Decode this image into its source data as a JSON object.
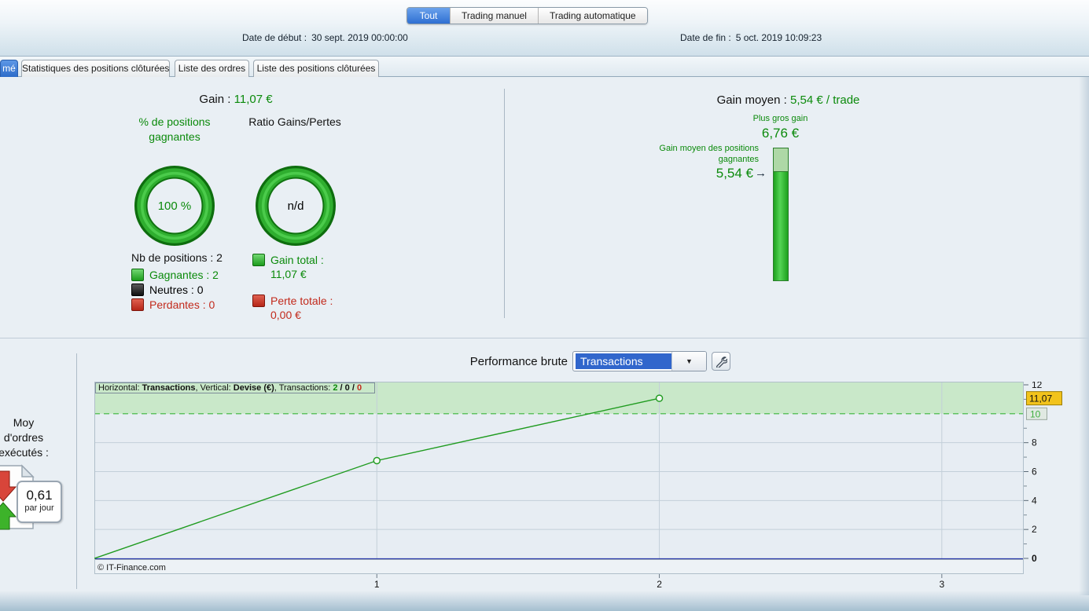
{
  "top": {
    "view_tabs": [
      {
        "label": "Tout",
        "selected": true
      },
      {
        "label": "Trading manuel",
        "selected": false
      },
      {
        "label": "Trading automatique",
        "selected": false
      }
    ],
    "date_start_label": "Date de début :",
    "date_start_value": "30 sept. 2019 00:00:00",
    "date_end_label": "Date de fin :",
    "date_end_value": "5 oct. 2019 10:09:23"
  },
  "tabs": [
    {
      "label": "mé",
      "selected": true
    },
    {
      "label": "Statistiques des positions clôturées",
      "selected": false
    },
    {
      "label": "Liste des ordres",
      "selected": false
    },
    {
      "label": "Liste des positions clôturées",
      "selected": false
    }
  ],
  "stats": {
    "gain_label": "Gain :",
    "gain_value": "11,07 €",
    "win_pct_title": "% de positions gagnantes",
    "ratio_title": "Ratio Gains/Pertes",
    "win_pct_value": "100 %",
    "ratio_value": "n/d",
    "nb_positions": "Nb de positions : 2",
    "legend": [
      {
        "label": "Gagnantes : 2",
        "color": "#1d9c1d"
      },
      {
        "label": "Neutres : 0",
        "color": "#222222"
      },
      {
        "label": "Perdantes : 0",
        "color": "#b52618"
      }
    ],
    "gain_total_label": "Gain total :",
    "gain_total_value": "11,07 €",
    "perte_totale_label": "Perte totale :",
    "perte_totale_value": "0,00 €"
  },
  "gain_moyen": {
    "title_label": "Gain moyen :",
    "title_value": "5,54 € / trade",
    "biggest_gain_label": "Plus gros gain",
    "biggest_gain_value": "6,76 €",
    "avg_win_label_line1": "Gain moyen des positions",
    "avg_win_label_line2": "gagnantes",
    "avg_win_value": "5,54 €",
    "arrow": "→",
    "bar_max": 6.76,
    "bar_value": 5.54
  },
  "performance": {
    "title": "Performance brute",
    "selector_value": "Transactions",
    "selector_arrow": "▼",
    "left_label_lines": [
      "Moy",
      "d'ordres",
      "exécutés :"
    ],
    "rate_value": "0,61",
    "rate_unit": "par jour",
    "copyright": "© IT-Finance.com"
  },
  "chart_data": {
    "type": "line",
    "title": "Performance brute",
    "xlabel": "Transactions",
    "ylabel": "Devise (€)",
    "info_bar": {
      "h_label": "Horizontal: ",
      "h_value": "Transactions",
      "sep1": ", Vertical: ",
      "v_value": "Devise (€)",
      "sep2": ", Transactions: ",
      "count_win": "2",
      "slash1": " / ",
      "count_neutral": "0",
      "slash2": " / ",
      "count_loss": "0"
    },
    "x": [
      0,
      1,
      2
    ],
    "y": [
      0,
      6.76,
      11.07
    ],
    "x_ticks": [
      1,
      2,
      3
    ],
    "x_tick_labels": [
      "1",
      "2",
      "3"
    ],
    "xlim": [
      0,
      3.29
    ],
    "ylim": [
      0,
      12
    ],
    "y_major_ticks": [
      0,
      2,
      4,
      6,
      8,
      12
    ],
    "y_minor_ticks": [
      1,
      3,
      5,
      7,
      9,
      11
    ],
    "band": {
      "from": 10,
      "to": 12
    },
    "last_value_badge": {
      "text": "11,07",
      "value": 11.07
    },
    "level_badge": {
      "text": "10",
      "value": 10
    },
    "grid": true,
    "legend_position": "none",
    "colors": {
      "line": "#1f9b1f",
      "band_fill": "#c9e8c9",
      "dashed_level": "#3cb53c",
      "zero_line": "#2636a8",
      "grid": "#c3cfd9",
      "badge_last_bg": "#f2c31c",
      "badge_level_text": "#3fae3f",
      "plot_bg": "#e7edf3"
    }
  }
}
